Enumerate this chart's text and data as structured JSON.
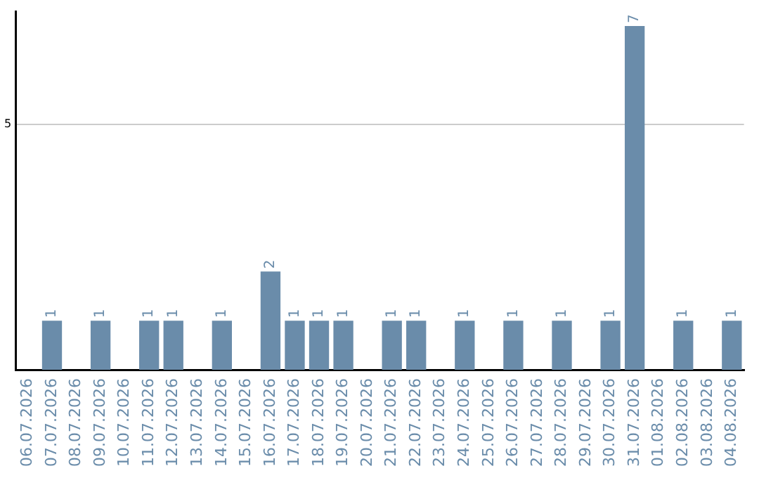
{
  "chart_data": {
    "type": "bar",
    "categories": [
      "06.07.2026",
      "07.07.2026",
      "08.07.2026",
      "09.07.2026",
      "10.07.2026",
      "11.07.2026",
      "12.07.2026",
      "13.07.2026",
      "14.07.2026",
      "15.07.2026",
      "16.07.2026",
      "17.07.2026",
      "18.07.2026",
      "19.07.2026",
      "20.07.2026",
      "21.07.2026",
      "22.07.2026",
      "23.07.2026",
      "24.07.2026",
      "25.07.2026",
      "26.07.2026",
      "27.07.2026",
      "28.07.2026",
      "29.07.2026",
      "30.07.2026",
      "31.07.2026",
      "01.08.2026",
      "02.08.2026",
      "03.08.2026",
      "04.08.2026"
    ],
    "values": [
      0,
      1,
      0,
      1,
      0,
      1,
      1,
      0,
      1,
      0,
      2,
      1,
      1,
      1,
      0,
      1,
      1,
      0,
      1,
      0,
      1,
      0,
      1,
      0,
      1,
      7,
      0,
      1,
      0,
      1
    ],
    "value_labels": [
      null,
      "1",
      null,
      "1",
      null,
      "1",
      "1",
      null,
      "1",
      null,
      "2",
      "1",
      "1",
      "1",
      null,
      "1",
      "1",
      null,
      "1",
      null,
      "1",
      null,
      "1",
      null,
      "1",
      "7",
      null,
      "1",
      null,
      "1"
    ],
    "color": "#6a8caa",
    "ylim": [
      0,
      7.3
    ],
    "yticks": [
      5
    ],
    "grid": "y",
    "legend": false
  }
}
